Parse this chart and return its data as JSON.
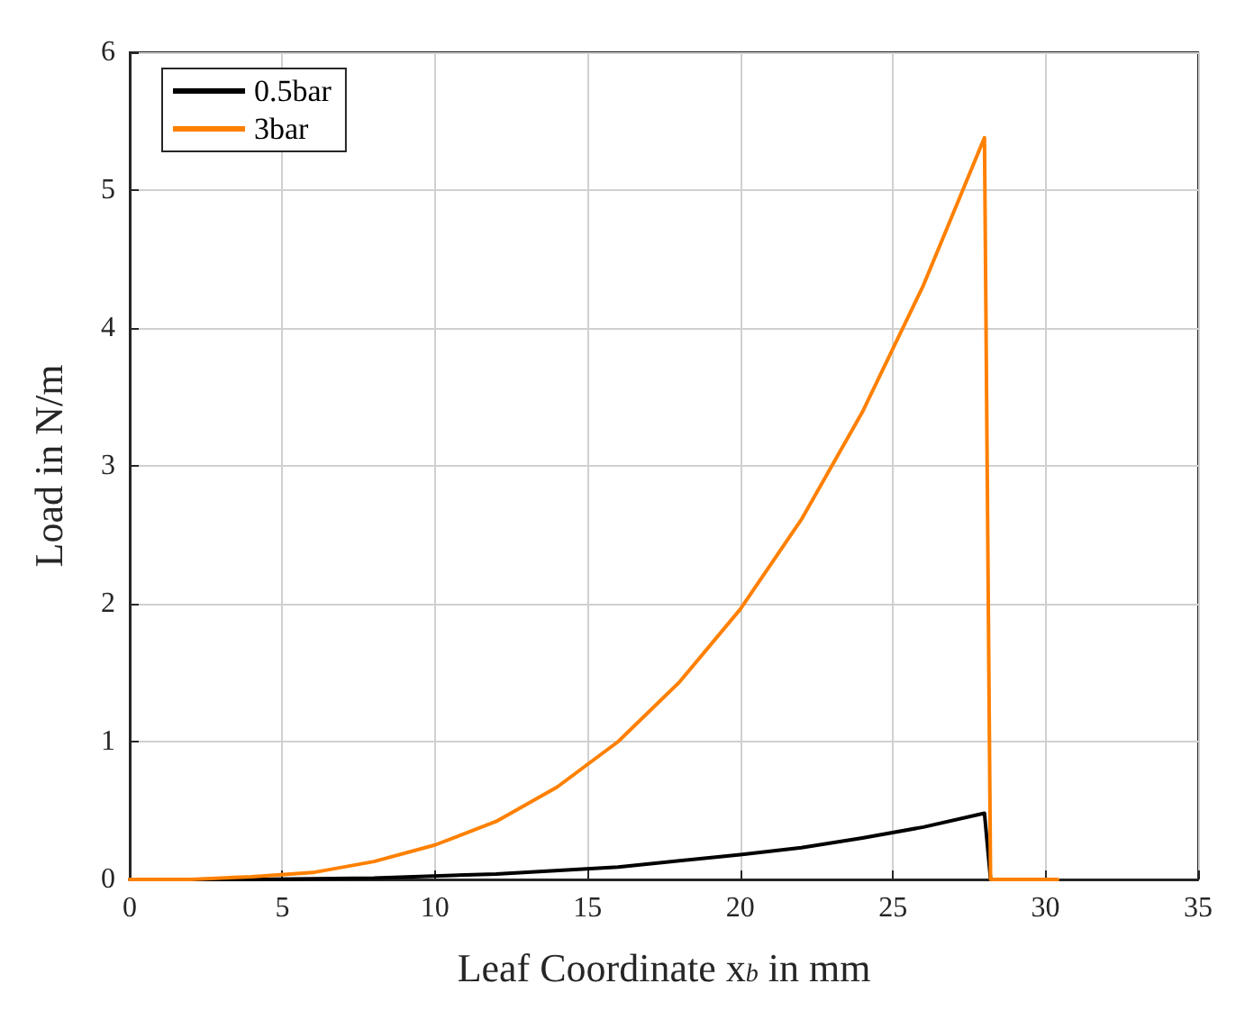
{
  "chart_data": {
    "type": "line",
    "xlabel": "Leaf Coordinate x$_{b}$ in mm",
    "ylabel": "Load in N/m",
    "xlim": [
      0,
      35
    ],
    "xticks": [
      0,
      5,
      10,
      15,
      20,
      25,
      30,
      35
    ],
    "ylim": [
      0,
      6
    ],
    "yticks": [
      0,
      1,
      2,
      3,
      4,
      5,
      6
    ],
    "grid": true,
    "legend": "top left",
    "marker": "none",
    "line_style": "solid",
    "series": [
      {
        "name": "0.5bar",
        "color": "#000000",
        "x": [
          0,
          4,
          8,
          12,
          16,
          20,
          22,
          24,
          26,
          28,
          28.2
        ],
        "values": [
          0,
          0,
          0.01,
          0.04,
          0.09,
          0.18,
          0.23,
          0.3,
          0.38,
          0.48,
          0
        ]
      },
      {
        "name": "3bar",
        "color": "#ff8000",
        "x": [
          0,
          2,
          4,
          6,
          8,
          10,
          12,
          14,
          16,
          18,
          20,
          22,
          24,
          26,
          28,
          28.2,
          30.4
        ],
        "values": [
          0,
          0,
          0.02,
          0.05,
          0.13,
          0.25,
          0.42,
          0.67,
          1.0,
          1.43,
          1.96,
          2.61,
          3.39,
          4.31,
          5.38,
          0,
          0
        ]
      }
    ]
  }
}
